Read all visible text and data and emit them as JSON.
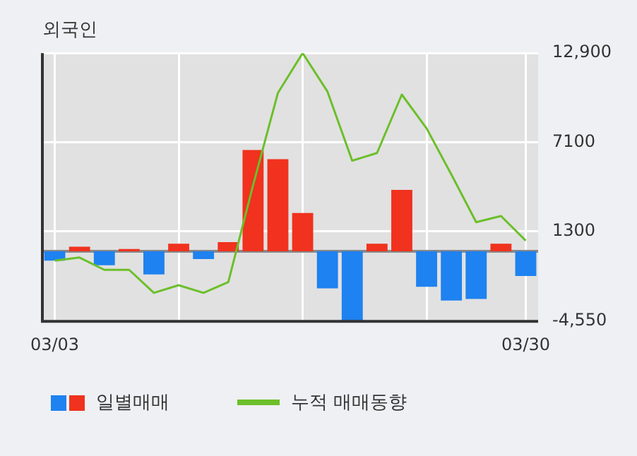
{
  "chart_data": {
    "type": "bar",
    "title": "외국인",
    "categories": [
      "03/03",
      null,
      null,
      null,
      null,
      null,
      null,
      null,
      null,
      null,
      null,
      null,
      null,
      null,
      null,
      null,
      null,
      null,
      null,
      "03/30"
    ],
    "series": [
      {
        "name": "일별매매",
        "colors": [
          "#1e82f0",
          "#f0321e",
          "#1e82f0",
          "#f0321e",
          "#1e82f0",
          "#f0321e",
          "#1e82f0",
          "#f0321e",
          "#f0321e",
          "#f0321e",
          "#f0321e",
          "#1e82f0",
          "#1e82f0",
          "#f0321e",
          "#f0321e",
          "#1e82f0",
          "#1e82f0",
          "#1e82f0",
          "#f0321e",
          "#1e82f0"
        ],
        "values": [
          -600,
          300,
          -900,
          150,
          -1500,
          500,
          -500,
          600,
          6600,
          6000,
          2500,
          -2400,
          -4550,
          500,
          4000,
          -2300,
          -3200,
          -3100,
          500,
          -1600
        ]
      },
      {
        "name": "누적 매매동향",
        "type": "line",
        "color": "#6cbf2a",
        "values": [
          -600,
          -400,
          -1200,
          -1200,
          -2700,
          -2200,
          -2700,
          -2000,
          4300,
          10300,
          12900,
          10400,
          5900,
          6400,
          10200,
          8000,
          5000,
          1900,
          2300,
          700
        ]
      }
    ],
    "ylim": [
      -4550,
      12900
    ],
    "yticks": [
      {
        "value": 12900,
        "label": "12,900"
      },
      7100,
      1300,
      {
        "value": -4550,
        "label": "-4,550"
      }
    ],
    "ref_lines": [
      {
        "axis": "y",
        "value": 0,
        "color": "#888888"
      }
    ],
    "grid": true,
    "legend": "bottom",
    "marker": "none",
    "line_style": "solid"
  }
}
